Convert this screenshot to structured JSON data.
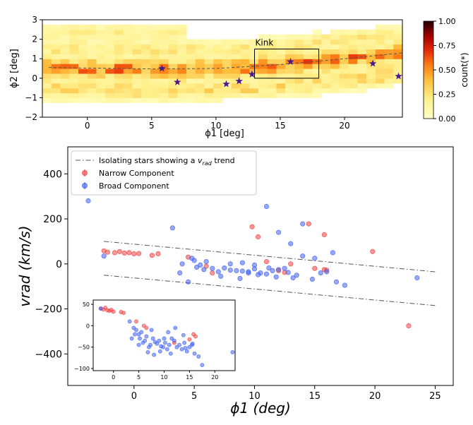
{
  "chart_data": [
    {
      "id": "density",
      "type": "heatmap",
      "xlabel": "ϕ1 [deg]",
      "ylabel": "ϕ2 [deg]",
      "xlim": [
        -3.5,
        24.5
      ],
      "ylim": [
        -2,
        3
      ],
      "xticks": [
        0,
        5,
        10,
        15,
        20
      ],
      "yticks": [
        -2,
        -1,
        0,
        1,
        2,
        3
      ],
      "colorbar": {
        "label": "count(*)",
        "range": [
          0,
          1
        ],
        "ticks": [
          "0.00",
          "0.25",
          "0.50",
          "0.75",
          "1.00"
        ]
      },
      "track": [
        [
          -3,
          0.55
        ],
        [
          5,
          0.48
        ],
        [
          10,
          0.5
        ],
        [
          15,
          0.7
        ],
        [
          20,
          1.0
        ],
        [
          24.5,
          1.3
        ]
      ],
      "annotation": {
        "label": "Kink",
        "box": {
          "x": [
            13,
            18
          ],
          "y": [
            0,
            1.5
          ]
        }
      },
      "stars": [
        {
          "x": 5.8,
          "y": 0.5
        },
        {
          "x": 7.0,
          "y": -0.2
        },
        {
          "x": 10.8,
          "y": -0.3
        },
        {
          "x": 11.8,
          "y": -0.15
        },
        {
          "x": 12.8,
          "y": 0.2
        },
        {
          "x": 15.8,
          "y": 0.85
        },
        {
          "x": 22.2,
          "y": 0.75
        },
        {
          "x": 24.2,
          "y": 0.1
        }
      ]
    },
    {
      "id": "velocity",
      "type": "scatter",
      "xlabel": "ϕ1 (deg)",
      "ylabel": "vrad (km/s)",
      "xlim": [
        -5.5,
        26.5
      ],
      "ylim": [
        -540,
        520
      ],
      "xticks": [
        0,
        5,
        10,
        15,
        20,
        25
      ],
      "yticks": [
        400,
        200,
        0,
        -200,
        -400
      ],
      "legend": {
        "position": "upper-left",
        "trend": "Isolating stars showing a v trend",
        "trend_parts": {
          "pre": "Isolating stars showing a ",
          "symbol": "v",
          "sub": "rad",
          "post": " trend"
        },
        "narrow": "Narrow Component",
        "broad": "Broad Component"
      },
      "trend_lines": [
        {
          "x": [
            -2.5,
            25
          ],
          "y": [
            100,
            -35
          ]
        },
        {
          "x": [
            -2.5,
            25
          ],
          "y": [
            -50,
            -185
          ]
        }
      ],
      "series": [
        {
          "name": "Narrow Component",
          "color": "#f04040",
          "points": [
            [
              -2.5,
              58
            ],
            [
              -2.2,
              52
            ],
            [
              -1.6,
              50
            ],
            [
              -1.2,
              55
            ],
            [
              -0.8,
              48
            ],
            [
              -0.4,
              50
            ],
            [
              0.0,
              45
            ],
            [
              0.4,
              46
            ],
            [
              1.5,
              38
            ],
            [
              2.0,
              45
            ],
            [
              4.5,
              30
            ],
            [
              6.0,
              -10
            ],
            [
              6.5,
              -40
            ],
            [
              12.0,
              -30
            ],
            [
              12.5,
              -38
            ],
            [
              15.0,
              -20
            ],
            [
              15.8,
              -25
            ],
            [
              16.0,
              -28
            ],
            [
              13.0,
              0
            ],
            [
              11.0,
              10
            ],
            [
              9.8,
              165
            ],
            [
              10.3,
              120
            ],
            [
              14.5,
              178
            ],
            [
              15.8,
              130
            ],
            [
              19.8,
              55
            ],
            [
              22.8,
              -275
            ]
          ]
        },
        {
          "name": "Broad Component",
          "color": "#4060f0",
          "points": [
            [
              -3.8,
              280
            ],
            [
              -2.5,
              35
            ],
            [
              3.2,
              160
            ],
            [
              4.0,
              0
            ],
            [
              4.8,
              25
            ],
            [
              5.2,
              -15
            ],
            [
              5.5,
              -5
            ],
            [
              5.8,
              -25
            ],
            [
              6.5,
              -20
            ],
            [
              7.0,
              -35
            ],
            [
              7.5,
              -18
            ],
            [
              8.0,
              -28
            ],
            [
              8.5,
              -30
            ],
            [
              9.0,
              -32
            ],
            [
              9.5,
              -40
            ],
            [
              10.0,
              -22
            ],
            [
              10.5,
              -40
            ],
            [
              11.0,
              -45
            ],
            [
              11.5,
              -30
            ],
            [
              12.0,
              -25
            ],
            [
              12.8,
              -38
            ],
            [
              13.5,
              -50
            ],
            [
              14.0,
              35
            ],
            [
              15.0,
              25
            ],
            [
              15.5,
              -40
            ],
            [
              16.0,
              -35
            ],
            [
              16.5,
              50
            ],
            [
              17.5,
              -95
            ],
            [
              23.5,
              -62
            ],
            [
              3.8,
              -40
            ],
            [
              4.5,
              -80
            ],
            [
              7.2,
              -55
            ],
            [
              8.8,
              -65
            ],
            [
              11.8,
              -58
            ],
            [
              13.2,
              -62
            ],
            [
              14.8,
              -68
            ],
            [
              14.0,
              178
            ],
            [
              11.0,
              255
            ],
            [
              12.0,
              140
            ],
            [
              13.0,
              90
            ],
            [
              10.0,
              -5
            ],
            [
              9.0,
              5
            ],
            [
              6.0,
              10
            ],
            [
              5.0,
              15
            ],
            [
              8.0,
              0
            ],
            [
              9.5,
              -35
            ],
            [
              10.3,
              -48
            ],
            [
              12.5,
              -20
            ],
            [
              11.2,
              -18
            ],
            [
              16.8,
              -80
            ]
          ]
        }
      ]
    },
    {
      "id": "inset",
      "type": "scatter",
      "xlim": [
        -4,
        24
      ],
      "ylim": [
        -105,
        60
      ],
      "xticks": [
        0,
        5,
        10,
        15,
        20
      ],
      "yticks": [
        50,
        0,
        -50,
        -100
      ],
      "series": [
        {
          "name": "Narrow Component",
          "color": "#f04040",
          "points": [
            [
              -2.5,
              40
            ],
            [
              -2.0,
              38
            ],
            [
              -1.6,
              42
            ],
            [
              -1.2,
              36
            ],
            [
              -0.8,
              35
            ],
            [
              -0.4,
              37
            ],
            [
              0.0,
              33
            ],
            [
              1.5,
              32
            ],
            [
              2.0,
              30
            ],
            [
              4.5,
              10
            ],
            [
              6.0,
              0
            ],
            [
              6.5,
              -5
            ],
            [
              12.0,
              -40
            ],
            [
              15.0,
              -32
            ],
            [
              15.8,
              -20
            ],
            [
              16.2,
              -25
            ]
          ]
        },
        {
          "name": "Broad Component",
          "color": "#4060f0",
          "points": [
            [
              -2.5,
              40
            ],
            [
              3.2,
              10
            ],
            [
              4.0,
              -5
            ],
            [
              4.5,
              -10
            ],
            [
              5.0,
              -20
            ],
            [
              5.2,
              -30
            ],
            [
              5.5,
              -15
            ],
            [
              5.8,
              -40
            ],
            [
              6.2,
              -35
            ],
            [
              6.5,
              -25
            ],
            [
              7.0,
              -50
            ],
            [
              7.3,
              -45
            ],
            [
              7.8,
              -30
            ],
            [
              8.2,
              -38
            ],
            [
              8.6,
              -42
            ],
            [
              9.0,
              -35
            ],
            [
              9.4,
              -48
            ],
            [
              9.8,
              -50
            ],
            [
              10.2,
              -40
            ],
            [
              10.6,
              -55
            ],
            [
              11.0,
              -45
            ],
            [
              11.5,
              -30
            ],
            [
              12.0,
              -35
            ],
            [
              12.5,
              -50
            ],
            [
              13.0,
              -45
            ],
            [
              13.5,
              -55
            ],
            [
              14.0,
              -40
            ],
            [
              14.5,
              -60
            ],
            [
              15.0,
              -50
            ],
            [
              15.5,
              -45
            ],
            [
              16.0,
              -65
            ],
            [
              16.8,
              -72
            ],
            [
              17.5,
              -92
            ],
            [
              23.5,
              -62
            ],
            [
              3.6,
              -30
            ],
            [
              4.2,
              -20
            ],
            [
              6.8,
              -62
            ],
            [
              8.0,
              -68
            ],
            [
              9.2,
              -60
            ],
            [
              10.8,
              -15
            ],
            [
              12.2,
              -5
            ],
            [
              13.8,
              -22
            ],
            [
              5.0,
              -45
            ],
            [
              7.5,
              -10
            ],
            [
              10.0,
              -30
            ],
            [
              11.3,
              -65
            ],
            [
              14.2,
              -52
            ],
            [
              15.6,
              -42
            ]
          ]
        }
      ]
    }
  ]
}
